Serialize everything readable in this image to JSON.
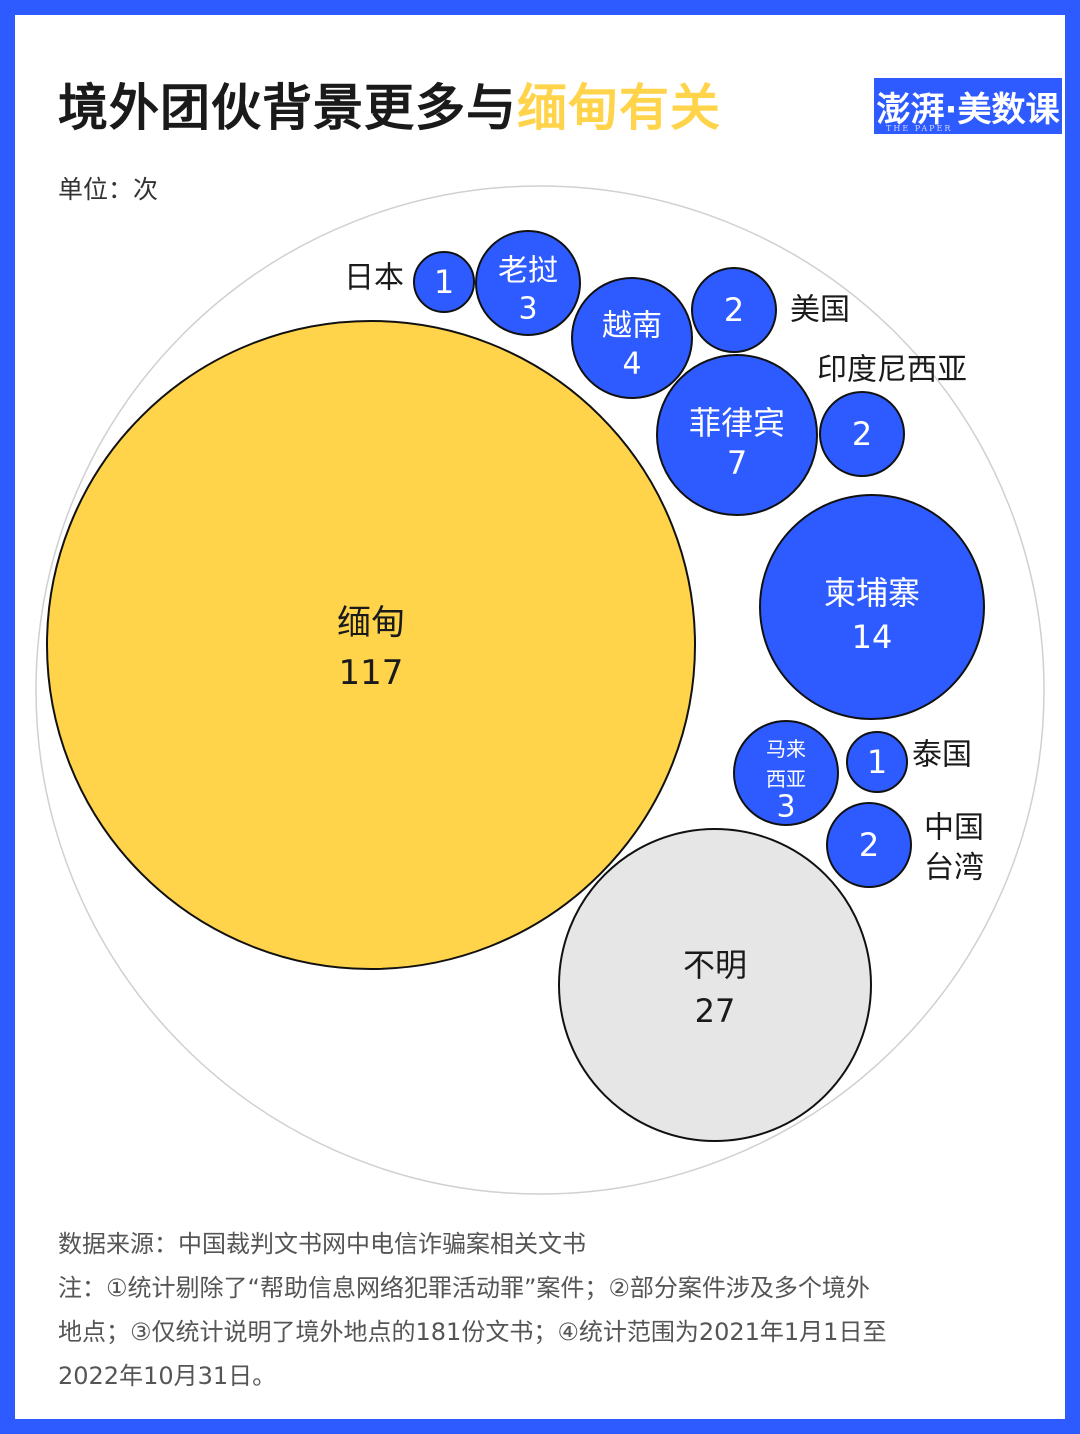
{
  "header": {
    "title_main": "境外团伙背景更多与",
    "title_highlight": "缅甸有关",
    "logo_text": "澎湃·美数课",
    "logo_sub": "THE PAPER",
    "unit": "单位：次"
  },
  "colors": {
    "background": "#2e5bff",
    "bubble_blue": "#2e5bff",
    "bubble_yellow": "#ffd44a",
    "bubble_gray": "#e6e6e6"
  },
  "chart_data": {
    "type": "bubble",
    "items": [
      {
        "name": "缅甸",
        "value": 117,
        "color": "#ffd44a"
      },
      {
        "name": "不明",
        "value": 27,
        "color": "#e6e6e6"
      },
      {
        "name": "柬埔寨",
        "value": 14,
        "color": "#2e5bff"
      },
      {
        "name": "菲律宾",
        "value": 7,
        "color": "#2e5bff"
      },
      {
        "name": "越南",
        "value": 4,
        "color": "#2e5bff"
      },
      {
        "name": "老挝",
        "value": 3,
        "color": "#2e5bff"
      },
      {
        "name": "马来西亚",
        "value": 3,
        "color": "#2e5bff"
      },
      {
        "name": "美国",
        "value": 2,
        "color": "#2e5bff"
      },
      {
        "name": "印度尼西亚",
        "value": 2,
        "color": "#2e5bff"
      },
      {
        "name": "中国台湾",
        "value": 2,
        "color": "#2e5bff"
      },
      {
        "name": "日本",
        "value": 1,
        "color": "#2e5bff"
      },
      {
        "name": "泰国",
        "value": 1,
        "color": "#2e5bff"
      }
    ]
  },
  "footer": {
    "source": "数据来源：中国裁判文书网中电信诈骗案相关文书",
    "note_1": "注：①统计剔除了“帮助信息网络犯罪活动罪”案件；②部分案件涉及多个境外",
    "note_2": "地点；③仅统计说明了境外地点的181份文书；④统计范围为2021年1月1日至",
    "note_3": "2022年10月31日。"
  }
}
